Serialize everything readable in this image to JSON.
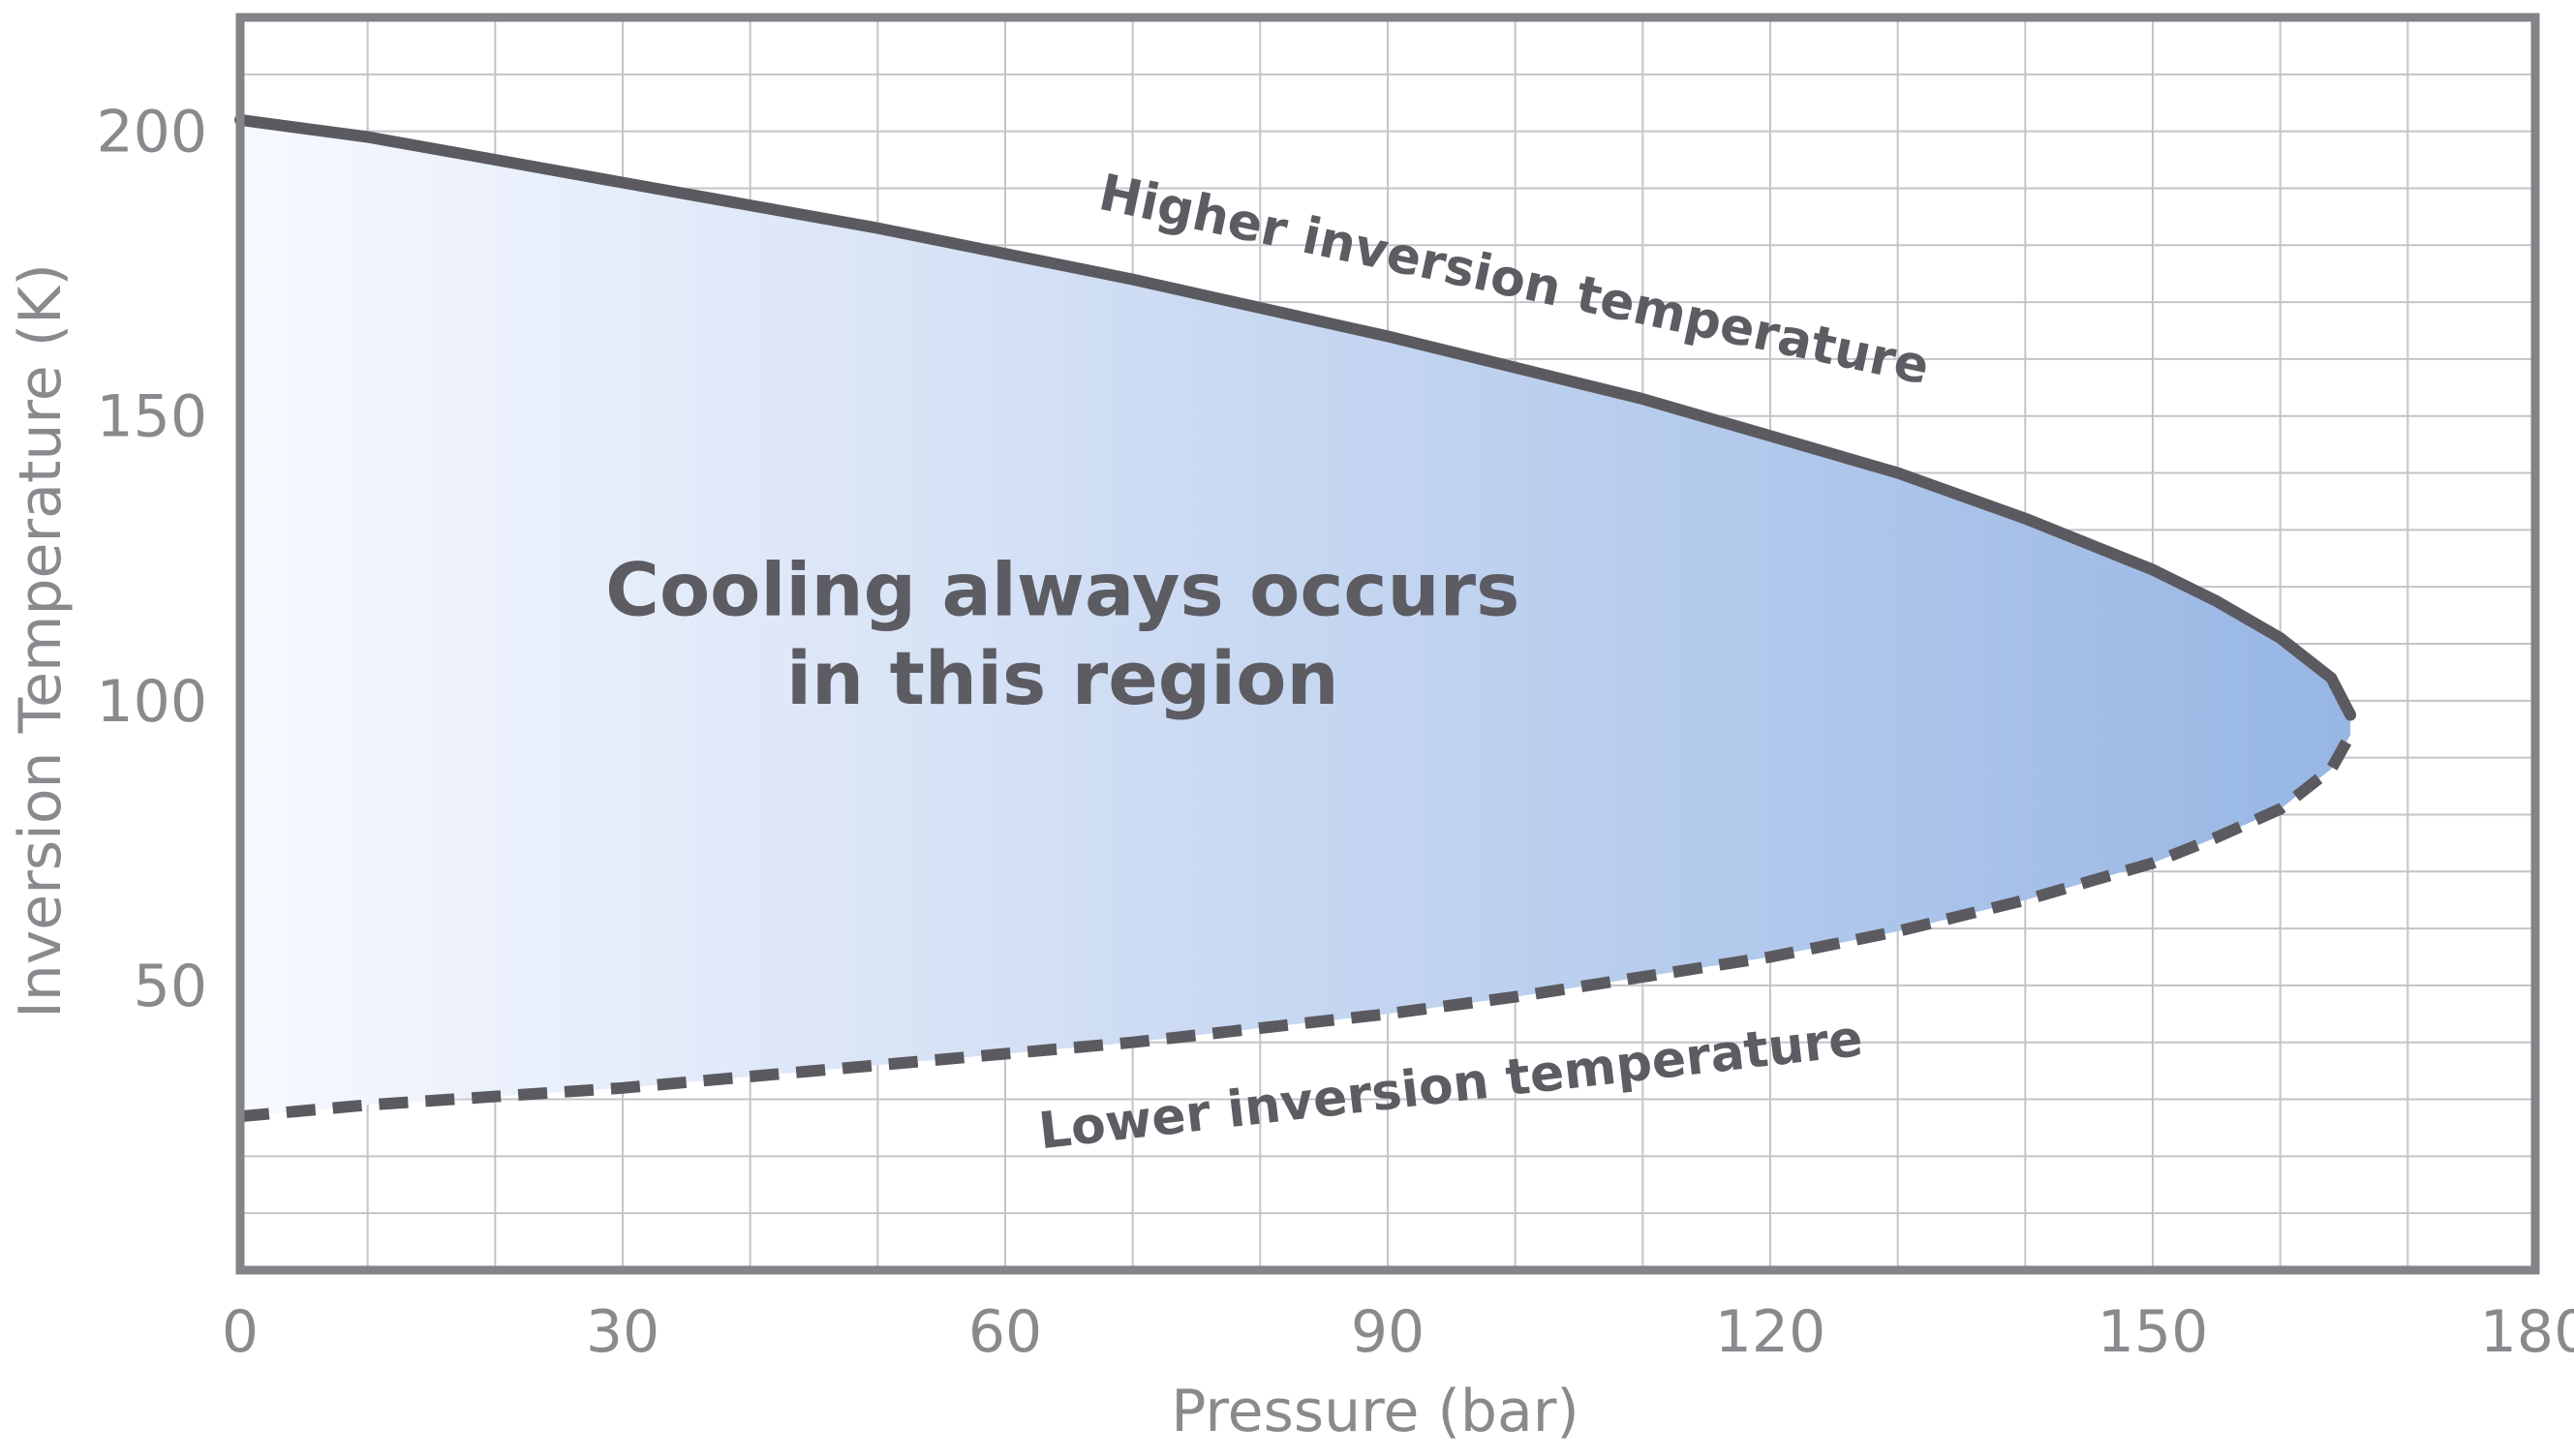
{
  "chart_data": {
    "type": "line",
    "title": "",
    "xlabel": "Pressure (bar)",
    "ylabel": "Inversion Temperature (K)",
    "xlim": [
      0,
      180
    ],
    "ylim": [
      0,
      220
    ],
    "x_ticks": [
      0,
      30,
      60,
      90,
      120,
      150,
      180
    ],
    "y_ticks": [
      50,
      100,
      150,
      200
    ],
    "x_tick_labels": [
      "0",
      "30",
      "60",
      "90",
      "120",
      "150",
      "180"
    ],
    "y_tick_labels": [
      "50",
      "100",
      "150",
      "200"
    ],
    "grid": true,
    "series": [
      {
        "name": "Higher inversion temperature",
        "style": "solid",
        "color": "#5a5a60",
        "x": [
          0,
          10,
          20,
          30,
          40,
          50,
          60,
          70,
          80,
          90,
          100,
          110,
          120,
          130,
          140,
          150,
          155,
          160,
          164,
          165.5
        ],
        "y": [
          202,
          199,
          195,
          191,
          187,
          183,
          178.5,
          174,
          169,
          164,
          158.5,
          153,
          146.5,
          140,
          132,
          123,
          117.5,
          111,
          104,
          97.5
        ]
      },
      {
        "name": "Lower inversion temperature",
        "style": "dashed",
        "color": "#5a5a60",
        "x": [
          0,
          10,
          20,
          30,
          40,
          50,
          60,
          70,
          80,
          90,
          100,
          110,
          120,
          130,
          140,
          150,
          155,
          160,
          164,
          165.5
        ],
        "y": [
          27,
          29,
          30.5,
          32,
          34,
          36,
          38,
          40,
          42.5,
          45,
          48,
          51.5,
          55,
          59.5,
          65,
          71.5,
          76,
          81,
          88,
          94
        ]
      }
    ],
    "annotations": [
      {
        "text": "Cooling always occurs",
        "x": 64.5,
        "y": 115
      },
      {
        "text": "in this region",
        "x": 64.5,
        "y": 99.5
      }
    ],
    "region_fill_colors": [
      "#f7f9ff",
      "#97b6e4"
    ]
  }
}
